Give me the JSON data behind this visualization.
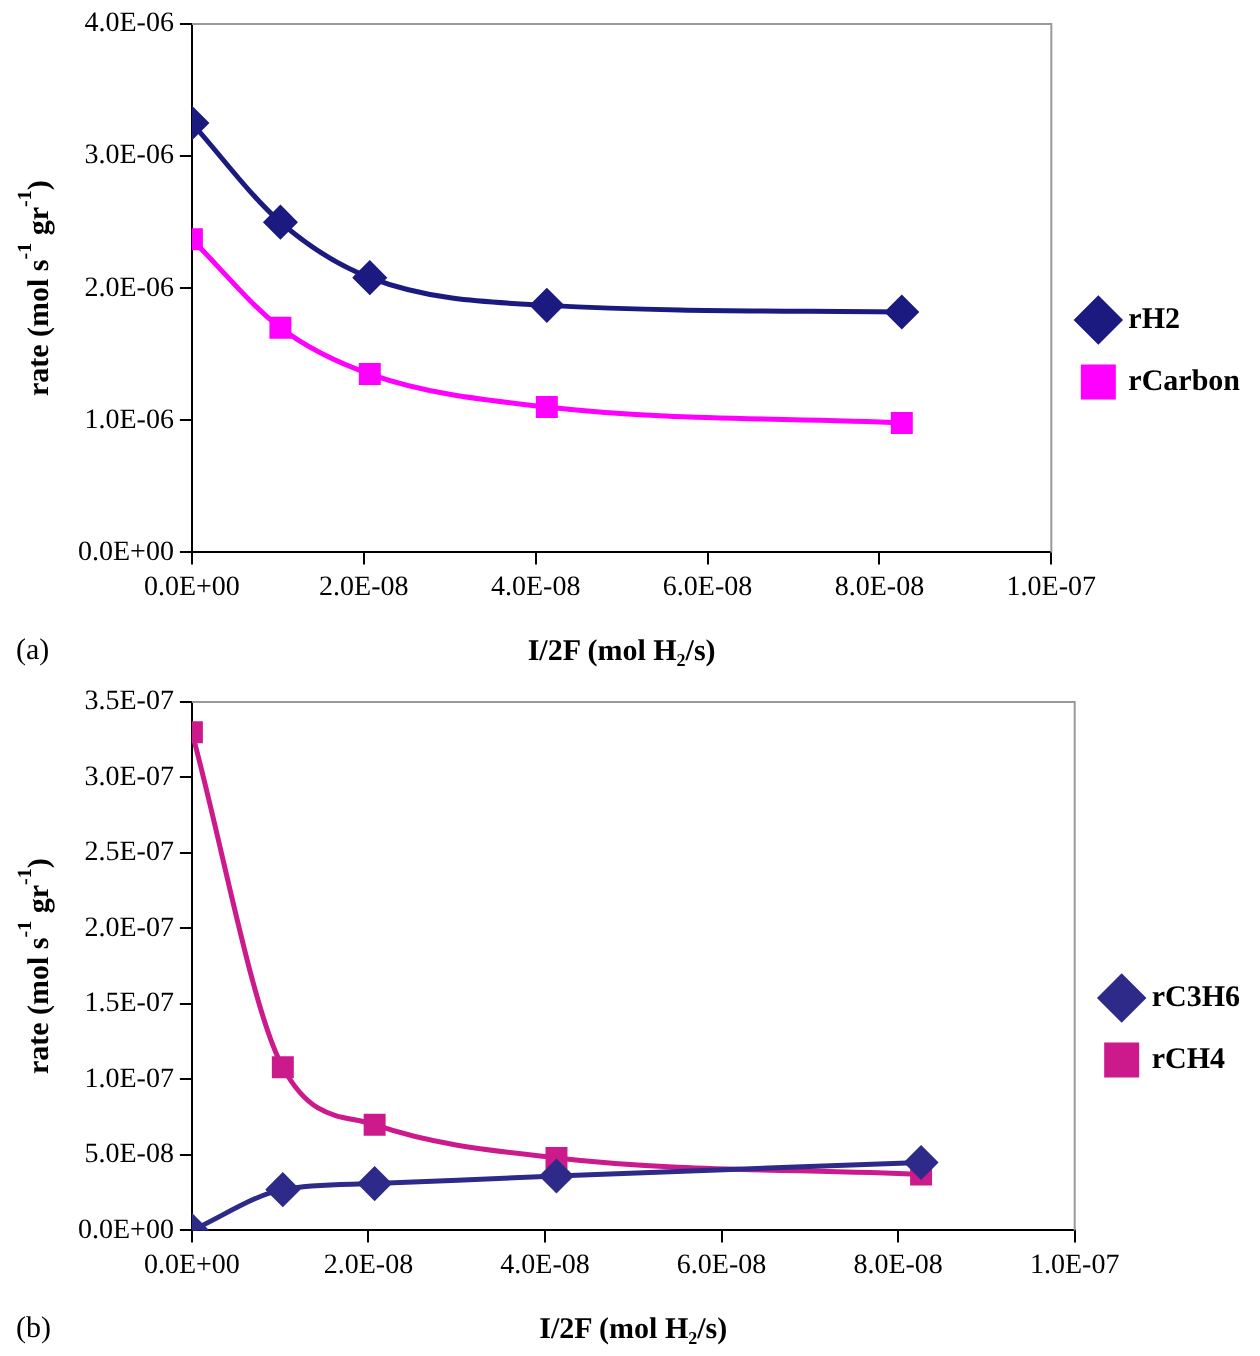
{
  "chart_data": [
    {
      "type": "line",
      "xlabel": "I/2F (mol H₂/s)",
      "ylabel": "rate (mol s$^{-1}$ gr$^{-1}$)",
      "annotations": [
        "(a)"
      ],
      "x": [
        0,
        1.03e-08,
        2.07e-08,
        4.13e-08,
        8.26e-08
      ],
      "series": [
        {
          "name": "rH2",
          "color": "#1a1a80",
          "marker": "diamond",
          "values": [
            3.25e-06,
            2.5e-06,
            2.08e-06,
            1.87e-06,
            1.82e-06
          ]
        },
        {
          "name": "rCarbon",
          "color": "#ff00ff",
          "marker": "square",
          "values": [
            2.37e-06,
            1.7e-06,
            1.35e-06,
            1.1e-06,
            9.8e-07
          ]
        }
      ],
      "xlim": [
        0,
        1e-07
      ],
      "xticks": [
        {
          "value": 0,
          "label": "0.0E+00"
        },
        {
          "value": 2e-08,
          "label": "2.0E-08"
        },
        {
          "value": 4e-08,
          "label": "4.0E-08"
        },
        {
          "value": 6e-08,
          "label": "6.0E-08"
        },
        {
          "value": 8e-08,
          "label": "8.0E-08"
        },
        {
          "value": 1e-07,
          "label": "1.0E-07"
        }
      ],
      "ylim": [
        0,
        4e-06
      ],
      "yticks": [
        {
          "value": 0,
          "label": "0.0E+00"
        },
        {
          "value": 1e-06,
          "label": "1.0E-06"
        },
        {
          "value": 2e-06,
          "label": "2.0E-06"
        },
        {
          "value": 3e-06,
          "label": "3.0E-06"
        },
        {
          "value": 4e-06,
          "label": "4.0E-06"
        }
      ],
      "grid": false,
      "legend": "right"
    },
    {
      "type": "line",
      "xlabel": "I/2F (mol H₂/s)",
      "ylabel": "rate (mol s$^{-1}$ gr$^{-1}$)",
      "annotations": [
        "(b)"
      ],
      "x": [
        0,
        1.03e-08,
        2.07e-08,
        4.13e-08,
        8.26e-08
      ],
      "series": [
        {
          "name": "rC3H6",
          "color": "#2e2a8a",
          "marker": "diamond",
          "values": [
            0,
            2.7e-08,
            3.1e-08,
            3.6e-08,
            4.5e-08
          ]
        },
        {
          "name": "rCH4",
          "color": "#cc1a8c",
          "marker": "square",
          "values": [
            3.3e-07,
            1.08e-07,
            7e-08,
            4.8e-08,
            3.7e-08
          ]
        }
      ],
      "xlim": [
        0,
        1e-07
      ],
      "xticks": [
        {
          "value": 0,
          "label": "0.0E+00"
        },
        {
          "value": 2e-08,
          "label": "2.0E-08"
        },
        {
          "value": 4e-08,
          "label": "4.0E-08"
        },
        {
          "value": 6e-08,
          "label": "6.0E-08"
        },
        {
          "value": 8e-08,
          "label": "8.0E-08"
        },
        {
          "value": 1e-07,
          "label": "1.0E-07"
        }
      ],
      "ylim": [
        0,
        3.5e-07
      ],
      "yticks": [
        {
          "value": 0,
          "label": "0.0E+00"
        },
        {
          "value": 5e-08,
          "label": "5.0E-08"
        },
        {
          "value": 1e-07,
          "label": "1.0E-07"
        },
        {
          "value": 1.5e-07,
          "label": "1.5E-07"
        },
        {
          "value": 2e-07,
          "label": "2.0E-07"
        },
        {
          "value": 2.5e-07,
          "label": "2.5E-07"
        },
        {
          "value": 3e-07,
          "label": "3.0E-07"
        },
        {
          "value": 3.5e-07,
          "label": "3.5E-07"
        }
      ],
      "grid": false,
      "legend": "right"
    }
  ]
}
